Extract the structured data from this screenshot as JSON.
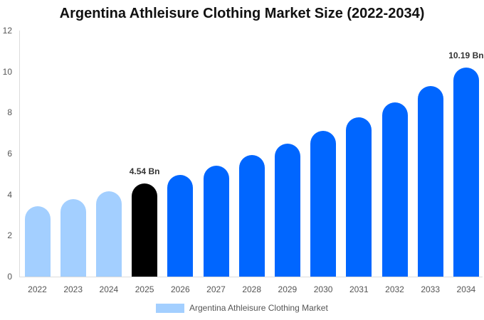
{
  "title": "Argentina Athleisure Clothing Market Size (2022-2034)",
  "legend": {
    "label": "Argentina Athleisure Clothing Market",
    "color": "#a3cfff"
  },
  "colors": {
    "historical": "#a3cfff",
    "base_year": "#000000",
    "forecast": "#0066ff"
  },
  "chart_data": {
    "type": "bar",
    "title": "Argentina Athleisure Clothing Market Size (2022-2034)",
    "xlabel": "",
    "ylabel": "",
    "ylim": [
      0,
      12
    ],
    "yticks": [
      0,
      2,
      4,
      6,
      8,
      10,
      12
    ],
    "grid": false,
    "legend_position": "bottom",
    "categories": [
      "2022",
      "2023",
      "2024",
      "2025",
      "2026",
      "2027",
      "2028",
      "2029",
      "2030",
      "2031",
      "2032",
      "2033",
      "2034"
    ],
    "series": [
      {
        "name": "Argentina Athleisure Clothing Market",
        "values": [
          3.43,
          3.78,
          4.16,
          4.54,
          4.96,
          5.41,
          5.93,
          6.49,
          7.11,
          7.77,
          8.5,
          9.3,
          10.19
        ]
      }
    ],
    "bar_colors": [
      "#a3cfff",
      "#a3cfff",
      "#a3cfff",
      "#000000",
      "#0066ff",
      "#0066ff",
      "#0066ff",
      "#0066ff",
      "#0066ff",
      "#0066ff",
      "#0066ff",
      "#0066ff",
      "#0066ff"
    ],
    "annotations": [
      {
        "category": "2025",
        "text": "4.54 Bn"
      },
      {
        "category": "2034",
        "text": "10.19 Bn"
      }
    ]
  }
}
